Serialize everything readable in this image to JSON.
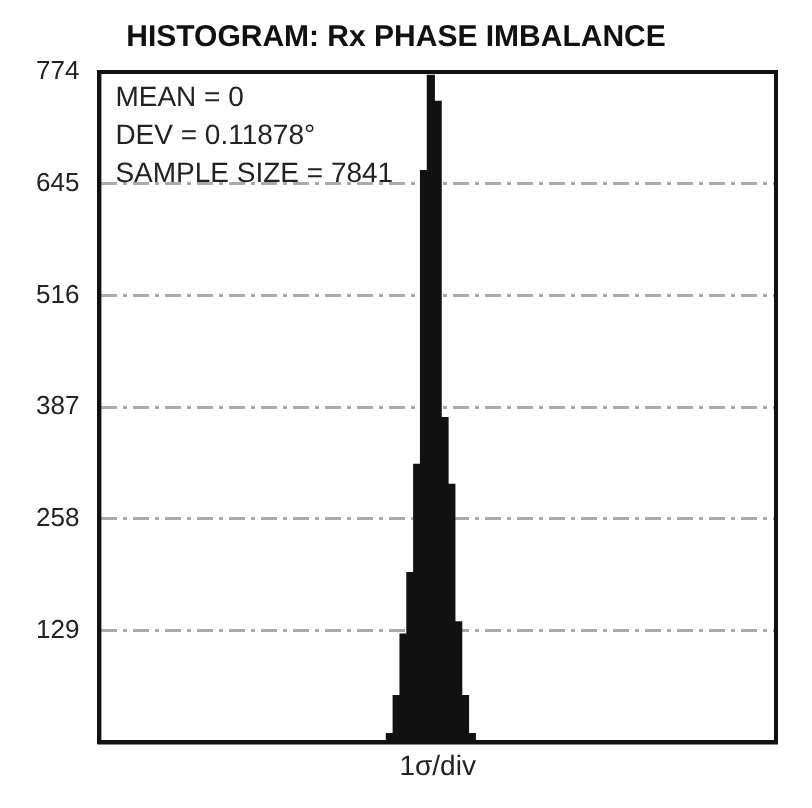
{
  "chart_data": {
    "type": "bar",
    "title": "HISTOGRAM: Rx PHASE IMBALANCE",
    "xlabel": "1σ/div",
    "categories": [
      null,
      null,
      null,
      null,
      null,
      null,
      null,
      null,
      null,
      null,
      null,
      null,
      null,
      null,
      null,
      null,
      null,
      null,
      null,
      null,
      null,
      null,
      null,
      null,
      null,
      null,
      null,
      null,
      null,
      null,
      null,
      null,
      null,
      null,
      null,
      null,
      null,
      null,
      null,
      null,
      null,
      null,
      null,
      null,
      null,
      null,
      null,
      null,
      null,
      null,
      null,
      null,
      null,
      null,
      null,
      null,
      null,
      null,
      null,
      null,
      null,
      null,
      null,
      null,
      null,
      null,
      null,
      null,
      null,
      null,
      null,
      null,
      null,
      null,
      null,
      null,
      null,
      null,
      null,
      null,
      null,
      null,
      null,
      null,
      null,
      null,
      null,
      null,
      null,
      null,
      null,
      null,
      null,
      null,
      null,
      null,
      null,
      null,
      null
    ],
    "values": [
      0,
      0,
      0,
      0,
      0,
      0,
      0,
      0,
      0,
      0,
      0,
      0,
      0,
      0,
      0,
      0,
      0,
      0,
      0,
      0,
      0,
      0,
      0,
      0,
      0,
      0,
      0,
      0,
      0,
      0,
      0,
      0,
      0,
      0,
      0,
      0,
      0,
      0,
      0,
      0,
      0,
      0,
      10,
      54,
      125,
      196,
      321,
      660,
      770,
      740,
      375,
      298,
      139,
      54,
      10,
      0,
      0,
      0,
      0,
      0,
      0,
      0,
      0,
      0,
      0,
      0,
      0,
      0,
      0,
      0,
      0,
      0,
      0,
      0,
      0,
      0,
      0,
      0,
      0,
      0,
      0,
      0,
      0,
      0,
      0,
      0,
      0,
      0,
      0,
      0,
      0,
      0,
      0,
      0,
      0,
      0,
      0,
      0,
      0
    ],
    "color": "#111111",
    "ylim": [
      0,
      774
    ],
    "yticks": [
      129,
      258,
      387,
      516,
      645,
      774
    ],
    "grid": "y",
    "annotations": [
      "MEAN = 0",
      "DEV = 0.11878°",
      "SAMPLE SIZE = 7841"
    ]
  }
}
